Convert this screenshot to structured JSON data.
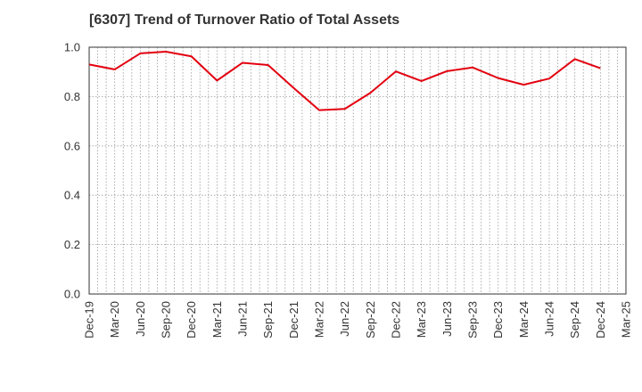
{
  "chart_data": {
    "type": "line",
    "title": "[6307]  Trend of Turnover Ratio of Total Assets",
    "xlabel": "",
    "ylabel": "",
    "categories": [
      "Dec-19",
      "Mar-20",
      "Jun-20",
      "Sep-20",
      "Dec-20",
      "Mar-21",
      "Jun-21",
      "Sep-21",
      "Dec-21",
      "Mar-22",
      "Jun-22",
      "Sep-22",
      "Dec-22",
      "Mar-23",
      "Jun-23",
      "Sep-23",
      "Dec-23",
      "Mar-24",
      "Jun-24",
      "Sep-24",
      "Dec-24",
      "Mar-25"
    ],
    "series": [
      {
        "color": "#e3000f",
        "values": [
          0.93,
          0.91,
          0.975,
          0.982,
          0.963,
          0.865,
          0.937,
          0.928,
          0.835,
          0.745,
          0.75,
          0.815,
          0.902,
          0.863,
          0.903,
          0.918,
          0.875,
          0.848,
          0.873,
          0.952,
          0.915,
          null
        ]
      }
    ],
    "ylim": [
      0.0,
      1.0
    ],
    "yticks": [
      "0.0",
      "0.2",
      "0.4",
      "0.6",
      "0.8",
      "1.0"
    ],
    "grid": true,
    "legend": "none"
  }
}
